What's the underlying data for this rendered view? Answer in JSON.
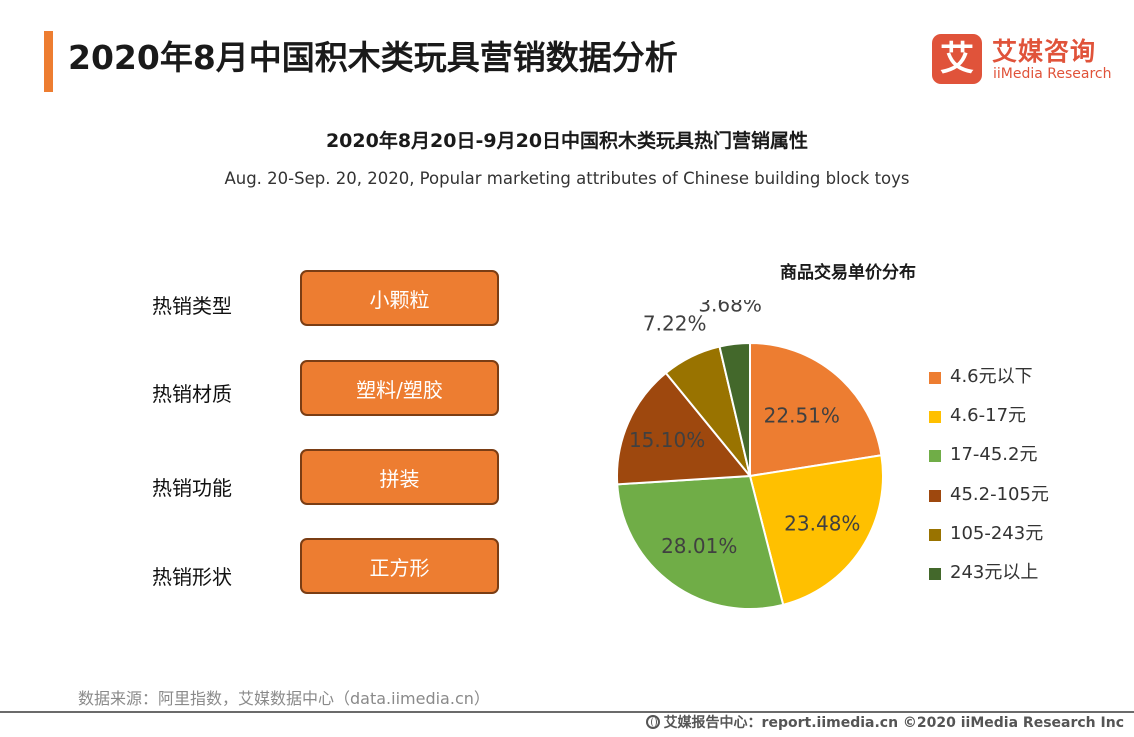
{
  "header": {
    "title": "2020年8月中国积木类玩具营销数据分析",
    "accent_color": "#ED7D31"
  },
  "logo": {
    "mark": "艾",
    "name_cn": "艾媒咨询",
    "name_en": "iiMedia Research",
    "brand_color": "#E0533A"
  },
  "subtitle": {
    "cn": "2020年8月20日-9月20日中国积木类玩具热门营销属性",
    "en": "Aug. 20-Sep. 20, 2020, Popular marketing attributes of Chinese building block toys"
  },
  "attributes": {
    "box_color": "#ED7D31",
    "items": [
      {
        "label": "热销类型",
        "value": "小颗粒"
      },
      {
        "label": "热销材质",
        "value": "塑料/塑胶"
      },
      {
        "label": "热销功能",
        "value": "拼装"
      },
      {
        "label": "热销形状",
        "value": "正方形"
      }
    ]
  },
  "chart_data": {
    "type": "pie",
    "title": "商品交易单价分布",
    "categories": [
      "4.6元以下",
      "4.6-17元",
      "17-45.2元",
      "45.2-105元",
      "105-243元",
      "243元以上"
    ],
    "values": [
      22.51,
      23.48,
      28.01,
      15.1,
      7.22,
      3.68
    ],
    "value_labels": [
      "22.51%",
      "23.48%",
      "28.01%",
      "15.10%",
      "7.22%",
      "3.68%"
    ],
    "colors": [
      "#ED7D31",
      "#FFC000",
      "#70AD47",
      "#9E480E",
      "#997300",
      "#43682B"
    ],
    "legend_position": "right"
  },
  "source": "数据来源：阿里指数，艾媒数据中心（data.iimedia.cn）",
  "footer": {
    "text": "艾媒报告中心：report.iimedia.cn  ©2020  iiMedia Research  Inc"
  }
}
